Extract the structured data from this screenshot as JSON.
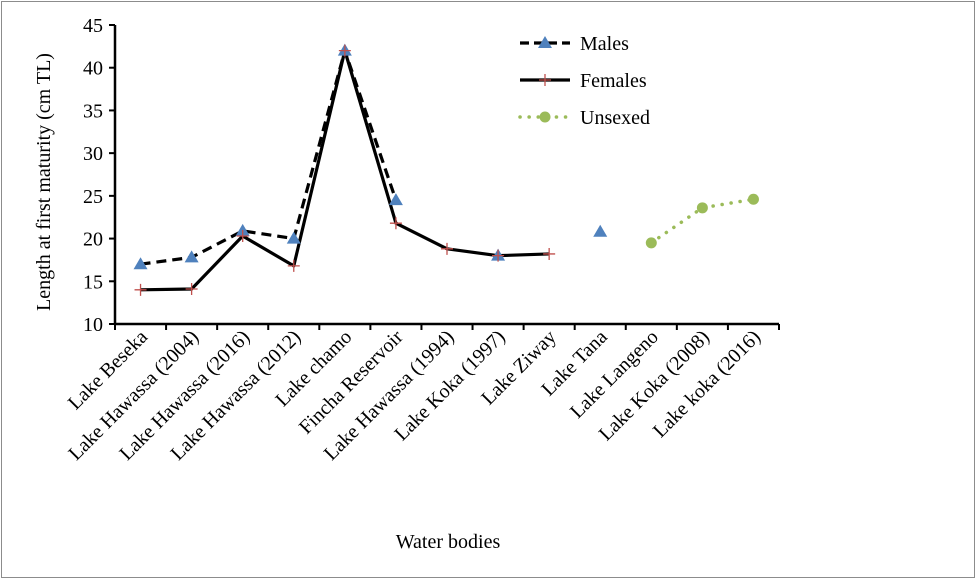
{
  "chart_data": {
    "type": "line",
    "title": "",
    "xlabel": "Water bodies",
    "ylabel": "Length at first maturity (cm TL)",
    "ylim": [
      10,
      45
    ],
    "yticks": [
      10,
      15,
      20,
      25,
      30,
      35,
      40,
      45
    ],
    "grid": false,
    "legend_position": "top-right",
    "categories": [
      "Lake Beseka",
      "Lake Hawassa (2004)",
      "Lake Hawassa (2016)",
      "Lake Hawassa (2012)",
      "Lake chamo",
      "Fincha Reservoir",
      "Lake Hawassa (1994)",
      "Lake Koka (1997)",
      "Lake Ziway",
      "Lake Tana",
      "Lake Langeno",
      "Lake Koka (2008)",
      "Lake koka (2016)"
    ],
    "series": [
      {
        "name": "Males",
        "line": "dashed",
        "marker": "triangle",
        "line_color": "#000000",
        "marker_color": "#4f81bd",
        "values": [
          17.0,
          17.8,
          20.9,
          20.0,
          42.0,
          24.5,
          null,
          18.0,
          null,
          20.8,
          null,
          null,
          null
        ]
      },
      {
        "name": "Females",
        "line": "solid",
        "marker": "plus",
        "line_color": "#000000",
        "marker_color": "#c0504d",
        "values": [
          14.0,
          14.1,
          20.3,
          16.8,
          42.0,
          21.8,
          18.8,
          18.0,
          18.2,
          null,
          null,
          null,
          null
        ]
      },
      {
        "name": "Unsexed",
        "line": "dotted",
        "marker": "circle",
        "line_color": "#9bbb59",
        "marker_color": "#9bbb59",
        "values": [
          null,
          null,
          null,
          null,
          null,
          null,
          null,
          null,
          null,
          null,
          19.5,
          23.6,
          24.6
        ]
      }
    ]
  }
}
